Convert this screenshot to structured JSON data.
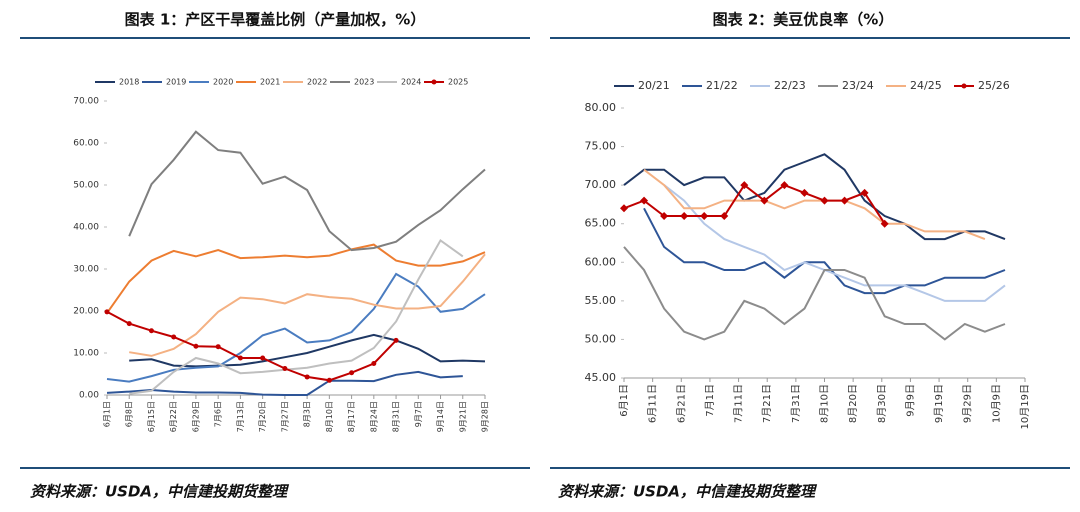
{
  "chart_data": [
    {
      "type": "line",
      "title": "图表 1：产区干旱覆盖比例（产量加权，%）",
      "source": "资料来源：USDA，中信建投期货整理",
      "categories": [
        "6月1日",
        "6月8日",
        "6月15日",
        "6月22日",
        "6月29日",
        "7月6日",
        "7月13日",
        "7月20日",
        "7月27日",
        "8月3日",
        "8月10日",
        "8月17日",
        "8月24日",
        "8月31日",
        "9月7日",
        "9月14日",
        "9月21日",
        "9月28日"
      ],
      "ylim": [
        0,
        70
      ],
      "yticks": [
        {
          "value": 0,
          "label": "0.00"
        },
        {
          "value": 10,
          "label": "10.00"
        },
        {
          "value": 20,
          "label": "20.00"
        },
        {
          "value": 30,
          "label": "30.00"
        },
        {
          "value": 40,
          "label": "40.00"
        },
        {
          "value": 50,
          "label": "50.00"
        },
        {
          "value": 60,
          "label": "60.00"
        },
        {
          "value": 70,
          "label": "70.00"
        }
      ],
      "series": [
        {
          "name": "2018",
          "color": "#1f3864",
          "values": [
            null,
            8.2,
            8.5,
            7.0,
            6.8,
            7.0,
            7.2,
            8.0,
            9.0,
            10.0,
            11.5,
            13.0,
            14.3,
            13.0,
            11.0,
            8.0,
            8.2,
            8.0
          ]
        },
        {
          "name": "2019",
          "color": "#2e5597",
          "values": [
            0.5,
            0.8,
            1.2,
            0.8,
            0.6,
            0.6,
            0.5,
            0.1,
            0,
            0,
            3.4,
            3.4,
            3.3,
            4.8,
            5.5,
            4.2,
            4.5,
            null
          ]
        },
        {
          "name": "2020",
          "color": "#4a7cc0",
          "values": [
            3.8,
            3.2,
            4.5,
            6.0,
            6.5,
            6.8,
            10.0,
            14.2,
            15.8,
            12.5,
            13.0,
            15.0,
            20.5,
            28.8,
            25.8,
            19.8,
            20.5,
            24.0
          ]
        },
        {
          "name": "2021",
          "color": "#ed7d31",
          "values": [
            19.5,
            27.0,
            32.0,
            34.3,
            33.0,
            34.5,
            32.6,
            32.8,
            33.2,
            32.8,
            33.2,
            34.7,
            35.8,
            32.0,
            30.8,
            30.8,
            31.8,
            34.0
          ]
        },
        {
          "name": "2022",
          "color": "#f4b183",
          "values": [
            null,
            10.2,
            9.3,
            11.0,
            14.5,
            19.8,
            23.2,
            22.8,
            21.8,
            24.0,
            23.3,
            22.9,
            21.5,
            20.6,
            20.6,
            21.2,
            27.0,
            33.5
          ]
        },
        {
          "name": "2023",
          "color": "#7f7f7f",
          "values": [
            null,
            37.8,
            50.2,
            56.0,
            62.7,
            58.3,
            57.7,
            50.3,
            52.0,
            48.8,
            39.0,
            34.5,
            35.0,
            36.5,
            40.5,
            44.0,
            49.0,
            53.7
          ]
        },
        {
          "name": "2024",
          "color": "#bfbfbf",
          "values": [
            null,
            0.3,
            1.0,
            5.5,
            8.8,
            7.5,
            5.2,
            5.5,
            6.0,
            6.5,
            7.5,
            8.2,
            11.2,
            17.5,
            27.5,
            36.8,
            33.0,
            null
          ]
        },
        {
          "name": "2025",
          "color": "#c00000",
          "marker": "circle",
          "values": [
            19.8,
            17.0,
            15.3,
            13.8,
            11.6,
            11.5,
            8.8,
            8.8,
            6.3,
            4.3,
            3.5,
            5.3,
            7.5,
            13.0,
            null,
            null,
            null,
            null
          ]
        }
      ]
    },
    {
      "type": "line",
      "title": "图表 2：美豆优良率（%）",
      "source": "资料来源：USDA，中信建投期货整理",
      "x": [
        0,
        7,
        14,
        21,
        28,
        35,
        42,
        49,
        56,
        63,
        70,
        77,
        84,
        91,
        98,
        105,
        112,
        119,
        126,
        133
      ],
      "xlim": [
        0,
        140
      ],
      "xticks": [
        {
          "value": 0,
          "label": "6月1日"
        },
        {
          "value": 10,
          "label": "6月11日"
        },
        {
          "value": 20,
          "label": "6月21日"
        },
        {
          "value": 30,
          "label": "7月1日"
        },
        {
          "value": 40,
          "label": "7月11日"
        },
        {
          "value": 50,
          "label": "7月21日"
        },
        {
          "value": 60,
          "label": "7月31日"
        },
        {
          "value": 70,
          "label": "8月10日"
        },
        {
          "value": 80,
          "label": "8月20日"
        },
        {
          "value": 90,
          "label": "8月30日"
        },
        {
          "value": 100,
          "label": "9月9日"
        },
        {
          "value": 110,
          "label": "9月19日"
        },
        {
          "value": 120,
          "label": "9月29日"
        },
        {
          "value": 130,
          "label": "10月9日"
        },
        {
          "value": 140,
          "label": "10月19日"
        }
      ],
      "ylim": [
        45,
        80
      ],
      "yticks": [
        {
          "value": 45,
          "label": "45.00"
        },
        {
          "value": 50,
          "label": "50.00"
        },
        {
          "value": 55,
          "label": "55.00"
        },
        {
          "value": 60,
          "label": "60.00"
        },
        {
          "value": 65,
          "label": "65.00"
        },
        {
          "value": 70,
          "label": "70.00"
        },
        {
          "value": 75,
          "label": "75.00"
        },
        {
          "value": 80,
          "label": "80.00"
        }
      ],
      "series": [
        {
          "name": "20/21",
          "color": "#203864",
          "values": [
            70,
            72,
            72,
            70,
            71,
            71,
            68,
            69,
            72,
            73,
            74,
            72,
            68,
            66,
            65,
            63,
            63,
            64,
            64,
            63
          ]
        },
        {
          "name": "21/22",
          "color": "#2e5597",
          "values": [
            null,
            67,
            62,
            60,
            60,
            59,
            59,
            60,
            58,
            60,
            60,
            57,
            56,
            56,
            57,
            57,
            58,
            58,
            58,
            59
          ]
        },
        {
          "name": "22/23",
          "color": "#b4c7e7",
          "values": [
            null,
            null,
            70,
            68,
            65,
            63,
            62,
            61,
            59,
            60,
            59,
            58,
            57,
            57,
            57,
            56,
            55,
            55,
            55,
            57
          ]
        },
        {
          "name": "23/24",
          "color": "#8c8c8c",
          "values": [
            62,
            59,
            54,
            51,
            50,
            51,
            55,
            54,
            52,
            54,
            59,
            59,
            58,
            53,
            52,
            52,
            50,
            52,
            51,
            52
          ]
        },
        {
          "name": "24/25",
          "color": "#f4b183",
          "values": [
            null,
            72,
            70,
            67,
            67,
            68,
            68,
            68,
            67,
            68,
            68,
            68,
            67,
            65,
            65,
            64,
            64,
            64,
            63,
            null
          ]
        },
        {
          "name": "25/26",
          "color": "#c00000",
          "marker": "diamond",
          "values": [
            67,
            68,
            66,
            66,
            66,
            66,
            70,
            68,
            70,
            69,
            68,
            68,
            69,
            65,
            null,
            null,
            null,
            null,
            null,
            null
          ]
        }
      ]
    }
  ]
}
